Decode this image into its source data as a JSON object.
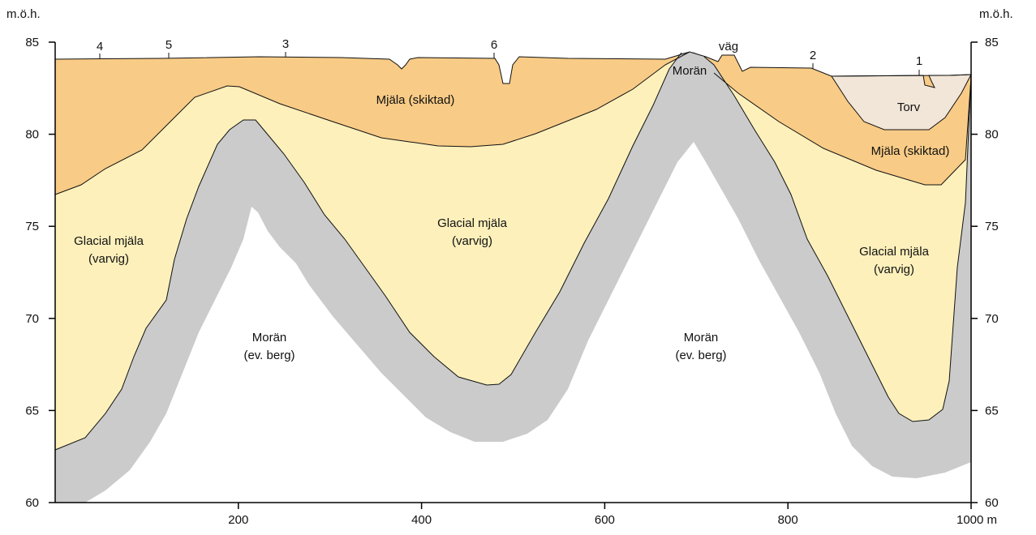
{
  "axes": {
    "left_label": "m.ö.h.",
    "right_label": "m.ö.h.",
    "xlim": [
      0,
      1000
    ],
    "ylim": [
      60,
      85
    ],
    "xticks": [
      200,
      400,
      600,
      800,
      {
        "value": 1000,
        "label": "1000 m"
      }
    ],
    "yticks": [
      60,
      65,
      70,
      75,
      80,
      85
    ]
  },
  "site_markers": [
    "4",
    "5",
    "3",
    "6",
    "väg",
    "2",
    "1"
  ],
  "region_labels": {
    "mjala_left": "Mjäla (skiktad)",
    "mjala_right": "Mjäla (skiktad)",
    "torv": "Torv",
    "moran_peak": "Morän",
    "glacial_left": [
      "Glacial mjäla",
      "(varvig)"
    ],
    "glacial_mid": [
      "Glacial mjäla",
      "(varvig)"
    ],
    "glacial_right": [
      "Glacial mjäla",
      "(varvig)"
    ],
    "moran_left": [
      "Morän",
      "(ev. berg)"
    ],
    "moran_right": [
      "Morän",
      "(ev. berg)"
    ]
  }
}
